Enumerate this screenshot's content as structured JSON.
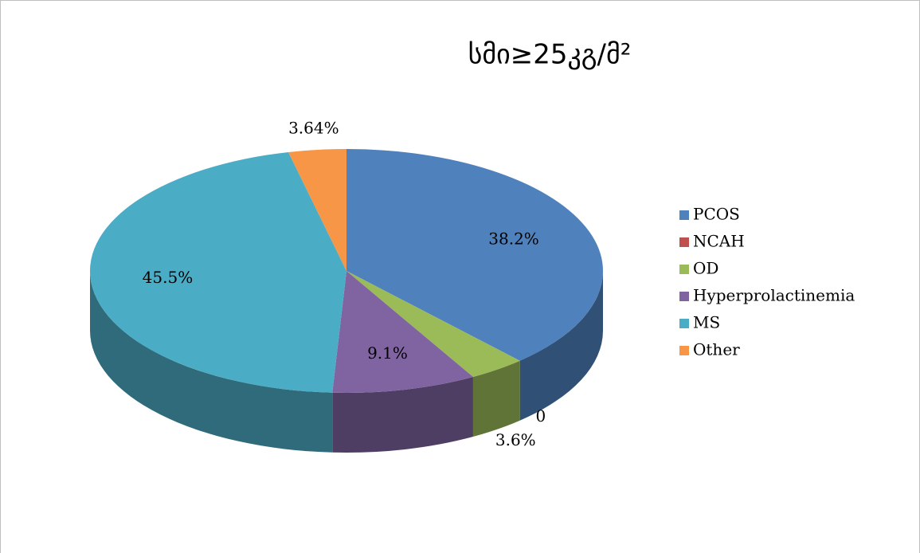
{
  "chart_data": {
    "type": "pie",
    "title": "სმი≥25კგ/მ²",
    "categories": [
      "PCOS",
      "NCAH",
      "OD",
      "Hyperprolactinemia",
      "MS",
      "Other"
    ],
    "values": [
      38.2,
      0,
      3.6,
      9.1,
      45.5,
      3.64
    ],
    "value_labels": [
      "38.2%",
      "0",
      "3.6%",
      "9.1%",
      "45.5%",
      "3.64%"
    ],
    "colors": [
      "#4f81bd",
      "#c0504d",
      "#9bbb59",
      "#8064a2",
      "#4bacc6",
      "#f79646"
    ],
    "legend": "right"
  }
}
